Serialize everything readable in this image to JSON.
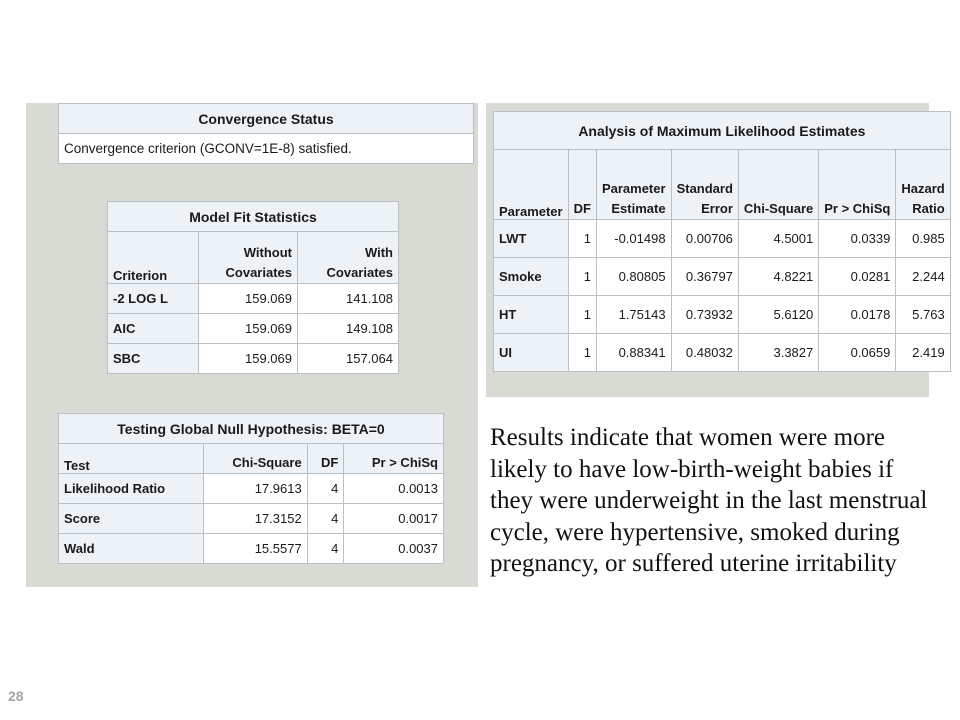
{
  "convergence": {
    "title": "Convergence Status",
    "message": "Convergence criterion (GCONV=1E-8) satisfied."
  },
  "model_fit": {
    "title": "Model Fit Statistics",
    "headers": [
      "Criterion",
      "Without Covariates",
      "With Covariates"
    ],
    "rows": [
      [
        "-2 LOG L",
        "159.069",
        "141.108"
      ],
      [
        "AIC",
        "159.069",
        "149.108"
      ],
      [
        "SBC",
        "159.069",
        "157.064"
      ]
    ]
  },
  "global_null": {
    "title": "Testing Global Null Hypothesis: BETA=0",
    "headers": [
      "Test",
      "Chi-Square",
      "DF",
      "Pr > ChiSq"
    ],
    "rows": [
      [
        "Likelihood Ratio",
        "17.9613",
        "4",
        "0.0013"
      ],
      [
        "Score",
        "17.3152",
        "4",
        "0.0017"
      ],
      [
        "Wald",
        "15.5577",
        "4",
        "0.0037"
      ]
    ]
  },
  "mle": {
    "title": "Analysis of Maximum Likelihood Estimates",
    "headers": [
      "Parameter",
      "DF",
      "Parameter Estimate",
      "Standard Error",
      "Chi-Square",
      "Pr > ChiSq",
      "Hazard Ratio"
    ],
    "rows": [
      [
        "LWT",
        "1",
        "-0.01498",
        "0.00706",
        "4.5001",
        "0.0339",
        "0.985"
      ],
      [
        "Smoke",
        "1",
        "0.80805",
        "0.36797",
        "4.8221",
        "0.0281",
        "2.244"
      ],
      [
        "HT",
        "1",
        "1.75143",
        "0.73932",
        "5.6120",
        "0.0178",
        "5.763"
      ],
      [
        "UI",
        "1",
        "0.88341",
        "0.48032",
        "3.3827",
        "0.0659",
        "2.419"
      ]
    ]
  },
  "summary_text": "Results indicate that women were more likely to have low-birth-weight babies if they were underweight in the last menstrual cycle, were hypertensive, smoked during pregnancy, or suffered uterine irritability",
  "page_number": "28"
}
